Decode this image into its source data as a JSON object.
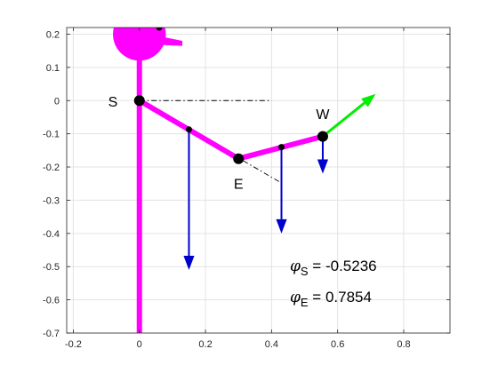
{
  "chart_data": {
    "type": "line",
    "title": "",
    "xlabel": "",
    "ylabel": "",
    "xlim": [
      -0.22,
      0.94
    ],
    "ylim": [
      -0.7,
      0.22
    ],
    "xticks": [
      -0.2,
      0,
      0.2,
      0.4,
      0.6,
      0.8
    ],
    "xtick_labels": [
      "-0.2",
      "0",
      "0.2",
      "0.4",
      "0.6",
      "0.8"
    ],
    "yticks": [
      0.2,
      0.1,
      0,
      -0.1,
      -0.2,
      -0.3,
      -0.4,
      -0.5,
      -0.6,
      -0.7
    ],
    "ytick_labels": [
      "0.2",
      "0.1",
      "0",
      "-0.1",
      "-0.2",
      "-0.3",
      "-0.4",
      "-0.5",
      "-0.6",
      "-0.7"
    ],
    "grid": true,
    "colors": {
      "body": "#ff00ff",
      "joint": "#000000",
      "weight_arrow": "#0000cd",
      "force_arrow": "#00ee00",
      "reference_line": "#000000",
      "grid": "#e3e3e3",
      "axes": "#262626"
    },
    "body": {
      "head_center": [
        0,
        0.2
      ],
      "head_radius": 0.08,
      "eye": [
        0.06,
        0.22
      ],
      "beak": [
        [
          0.055,
          0.195
        ],
        [
          0.13,
          0.18
        ],
        [
          0.13,
          0.165
        ],
        [
          0.06,
          0.168
        ]
      ],
      "torso": [
        [
          0,
          0.13
        ],
        [
          0,
          -0.7
        ]
      ]
    },
    "arm": {
      "points": [
        {
          "name": "S",
          "x": 0,
          "y": 0
        },
        {
          "name": "E",
          "x": 0.3,
          "y": -0.175
        },
        {
          "name": "W",
          "x": 0.555,
          "y": -0.108
        }
      ],
      "centers_of_mass": [
        {
          "x": 0.15,
          "y": -0.087
        },
        {
          "x": 0.43,
          "y": -0.14
        }
      ]
    },
    "labels": [
      {
        "text": "S",
        "x": -0.08,
        "y": -0.002
      },
      {
        "text": "E",
        "x": 0.3,
        "y": -0.25
      },
      {
        "text": "W",
        "x": 0.555,
        "y": -0.04
      }
    ],
    "reference_lines": [
      {
        "from": [
          0,
          0
        ],
        "to": [
          0.4,
          0
        ]
      },
      {
        "from": [
          0,
          0
        ],
        "to": [
          0.43,
          -0.248
        ]
      }
    ],
    "weight_arrows": [
      {
        "x": 0.15,
        "y_from": -0.087,
        "y_to": -0.51
      },
      {
        "x": 0.43,
        "y_from": -0.14,
        "y_to": -0.4
      },
      {
        "x": 0.555,
        "y_from": -0.108,
        "y_to": -0.22
      }
    ],
    "force_arrow": {
      "from": [
        0.555,
        -0.108
      ],
      "to": [
        0.715,
        0.02
      ]
    },
    "annotations": {
      "phi_s": {
        "symbol": "φ",
        "sub": "S",
        "text": " = -0.5236"
      },
      "phi_e": {
        "symbol": "φ",
        "sub": "E",
        "text": " = 0.7854"
      }
    }
  }
}
